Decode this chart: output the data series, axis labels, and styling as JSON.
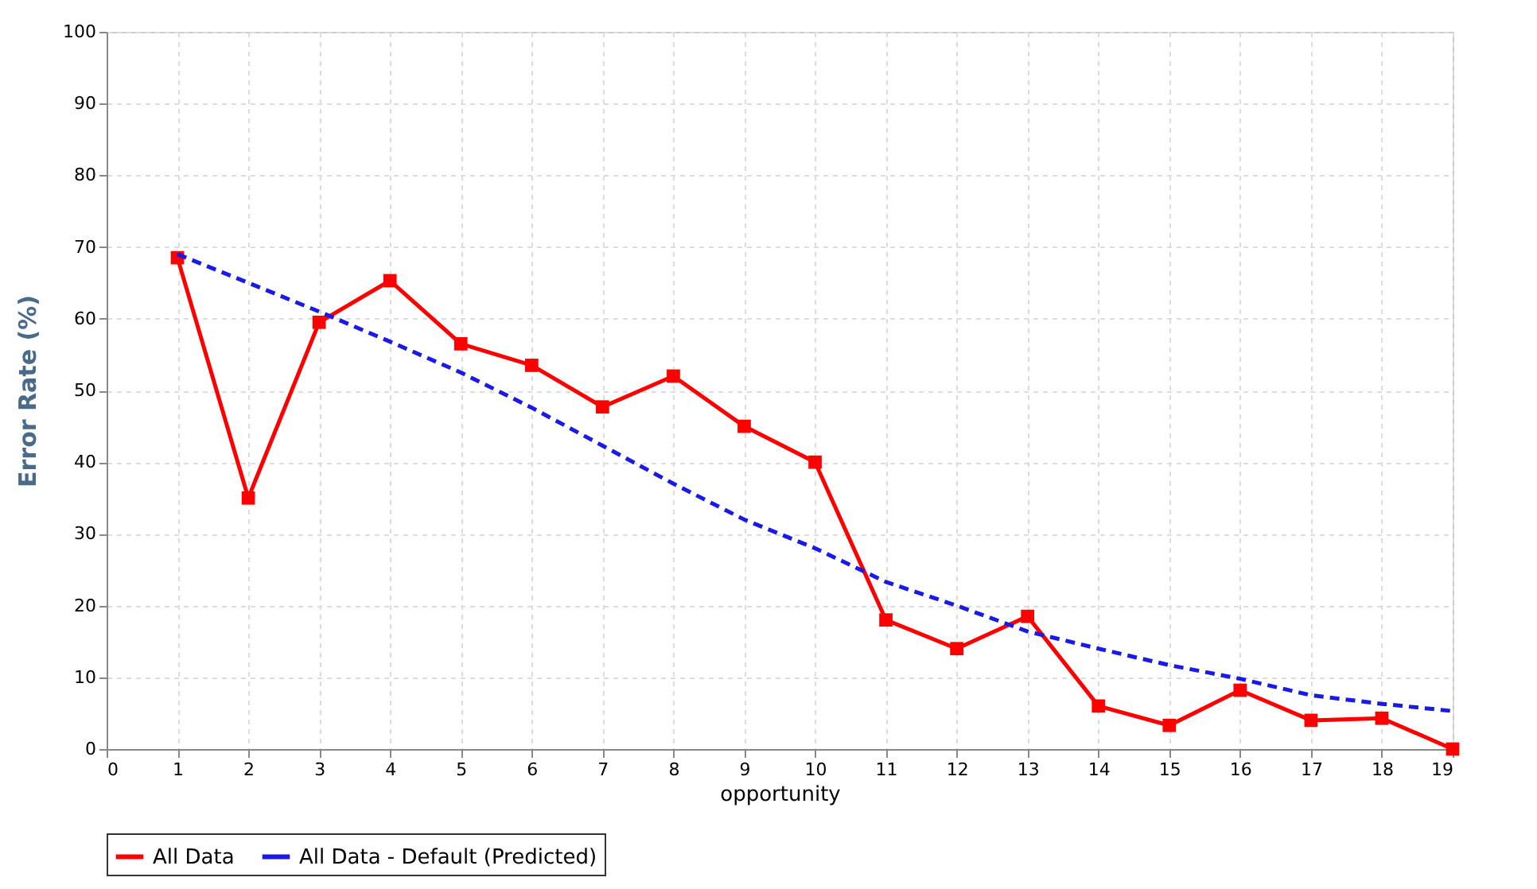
{
  "chart_data": {
    "type": "line",
    "xlabel": "opportunity",
    "ylabel": "Error Rate (%)",
    "x": [
      1,
      2,
      3,
      4,
      5,
      6,
      7,
      8,
      9,
      10,
      11,
      12,
      13,
      14,
      15,
      16,
      17,
      18,
      19
    ],
    "series": [
      {
        "name": "All Data",
        "color": "#ff0000",
        "marker": "square",
        "line_style": "solid",
        "values": [
          68.5,
          35,
          59.5,
          65.3,
          56.5,
          53.5,
          47.7,
          52,
          45,
          40,
          18,
          14,
          18.5,
          6,
          3.3,
          8.2,
          4,
          4.3,
          0
        ]
      },
      {
        "name": "All Data - Default (Predicted)",
        "color": "#1a1ae6",
        "marker": "none",
        "line_style": "dashed",
        "values": [
          69,
          65,
          61,
          56.8,
          52.5,
          47.6,
          42.3,
          37,
          32,
          28,
          23.3,
          20,
          16.4,
          14,
          11.7,
          9.8,
          7.5,
          6.3,
          5.3
        ]
      }
    ],
    "xlim": [
      0,
      19
    ],
    "xticks": [
      0,
      1,
      2,
      3,
      4,
      5,
      6,
      7,
      8,
      9,
      10,
      11,
      12,
      13,
      14,
      15,
      16,
      17,
      18,
      19
    ],
    "ylim": [
      0,
      100
    ],
    "yticks": [
      0,
      10,
      20,
      30,
      40,
      50,
      60,
      70,
      80,
      90,
      100
    ],
    "grid": true,
    "legend": "bottom"
  }
}
